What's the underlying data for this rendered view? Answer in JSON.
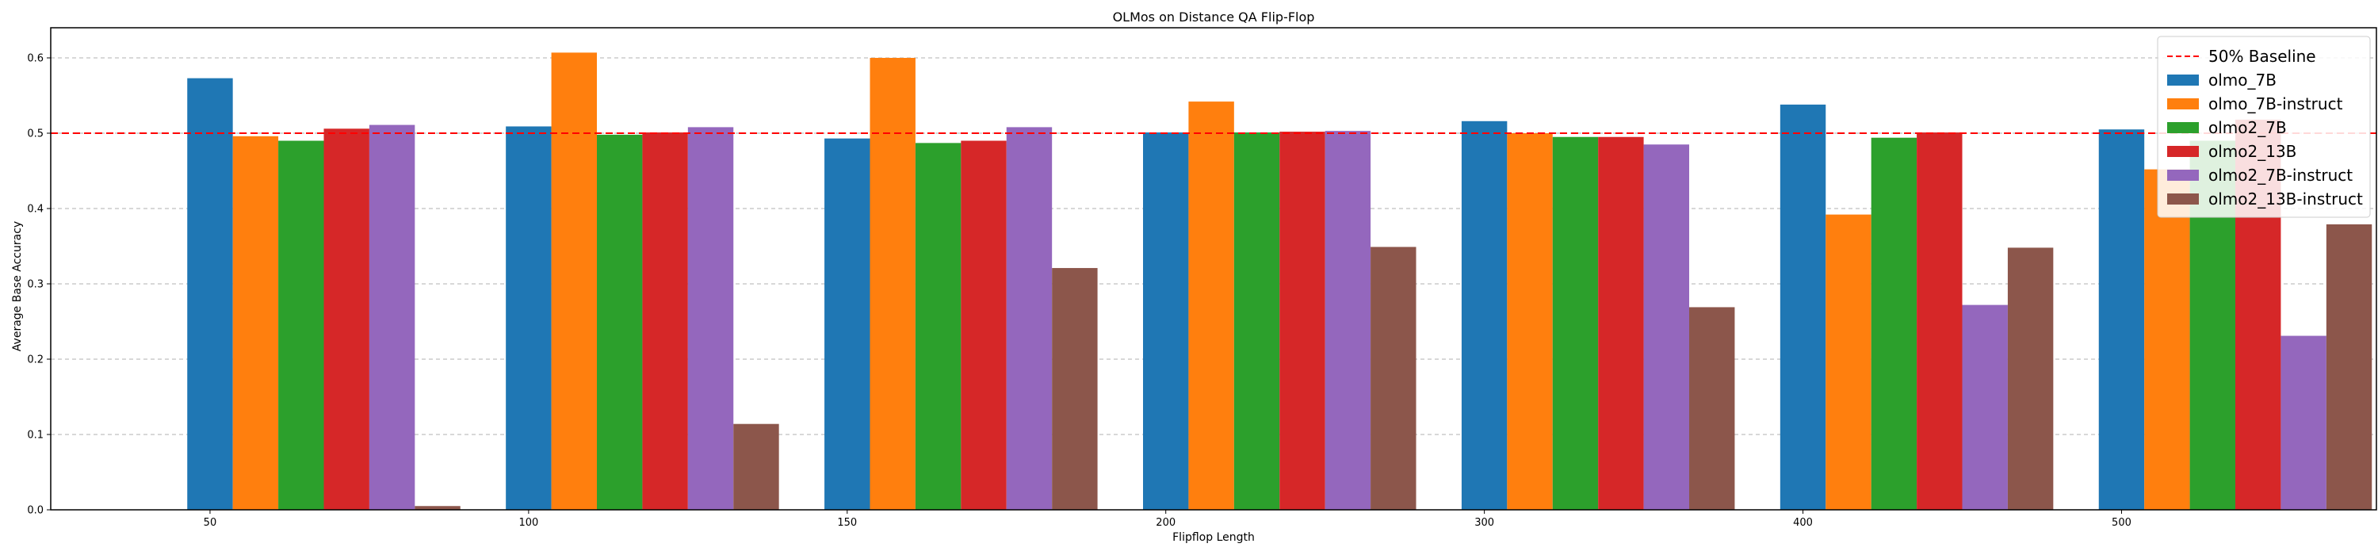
{
  "chart_data": {
    "type": "bar",
    "title": "OLMos on Distance QA Flip-Flop",
    "xlabel": "Flipflop Length",
    "ylabel": "Average Base Accuracy",
    "categories": [
      "50",
      "100",
      "150",
      "200",
      "300",
      "400",
      "500"
    ],
    "ylim": [
      0,
      0.64
    ],
    "yticks": [
      0.0,
      0.1,
      0.2,
      0.3,
      0.4,
      0.5,
      0.6
    ],
    "ytick_labels": [
      "0.0",
      "0.1",
      "0.2",
      "0.3",
      "0.4",
      "0.5",
      "0.6"
    ],
    "grid": "y-dashed",
    "legend_position": "top-right",
    "baseline": {
      "name": "50% Baseline",
      "value": 0.5,
      "color": "#ff0000"
    },
    "series": [
      {
        "name": "olmo_7B",
        "color": "#1f77b4",
        "values": [
          0.573,
          0.509,
          0.493,
          0.501,
          0.516,
          0.538,
          0.505
        ]
      },
      {
        "name": "olmo_7B-instruct",
        "color": "#ff7f0e",
        "values": [
          0.496,
          0.607,
          0.6,
          0.542,
          0.5,
          0.392,
          0.452
        ]
      },
      {
        "name": "olmo2_7B",
        "color": "#2ca02c",
        "values": [
          0.49,
          0.498,
          0.487,
          0.501,
          0.495,
          0.494,
          0.49
        ]
      },
      {
        "name": "olmo2_13B",
        "color": "#d62728",
        "values": [
          0.506,
          0.501,
          0.49,
          0.502,
          0.495,
          0.501,
          0.518
        ]
      },
      {
        "name": "olmo2_7B-instruct",
        "color": "#9467bd",
        "values": [
          0.511,
          0.508,
          0.508,
          0.503,
          0.485,
          0.272,
          0.231
        ]
      },
      {
        "name": "olmo2_13B-instruct",
        "color": "#8c564b",
        "values": [
          0.005,
          0.114,
          0.321,
          0.349,
          0.269,
          0.348,
          0.379
        ]
      }
    ]
  }
}
